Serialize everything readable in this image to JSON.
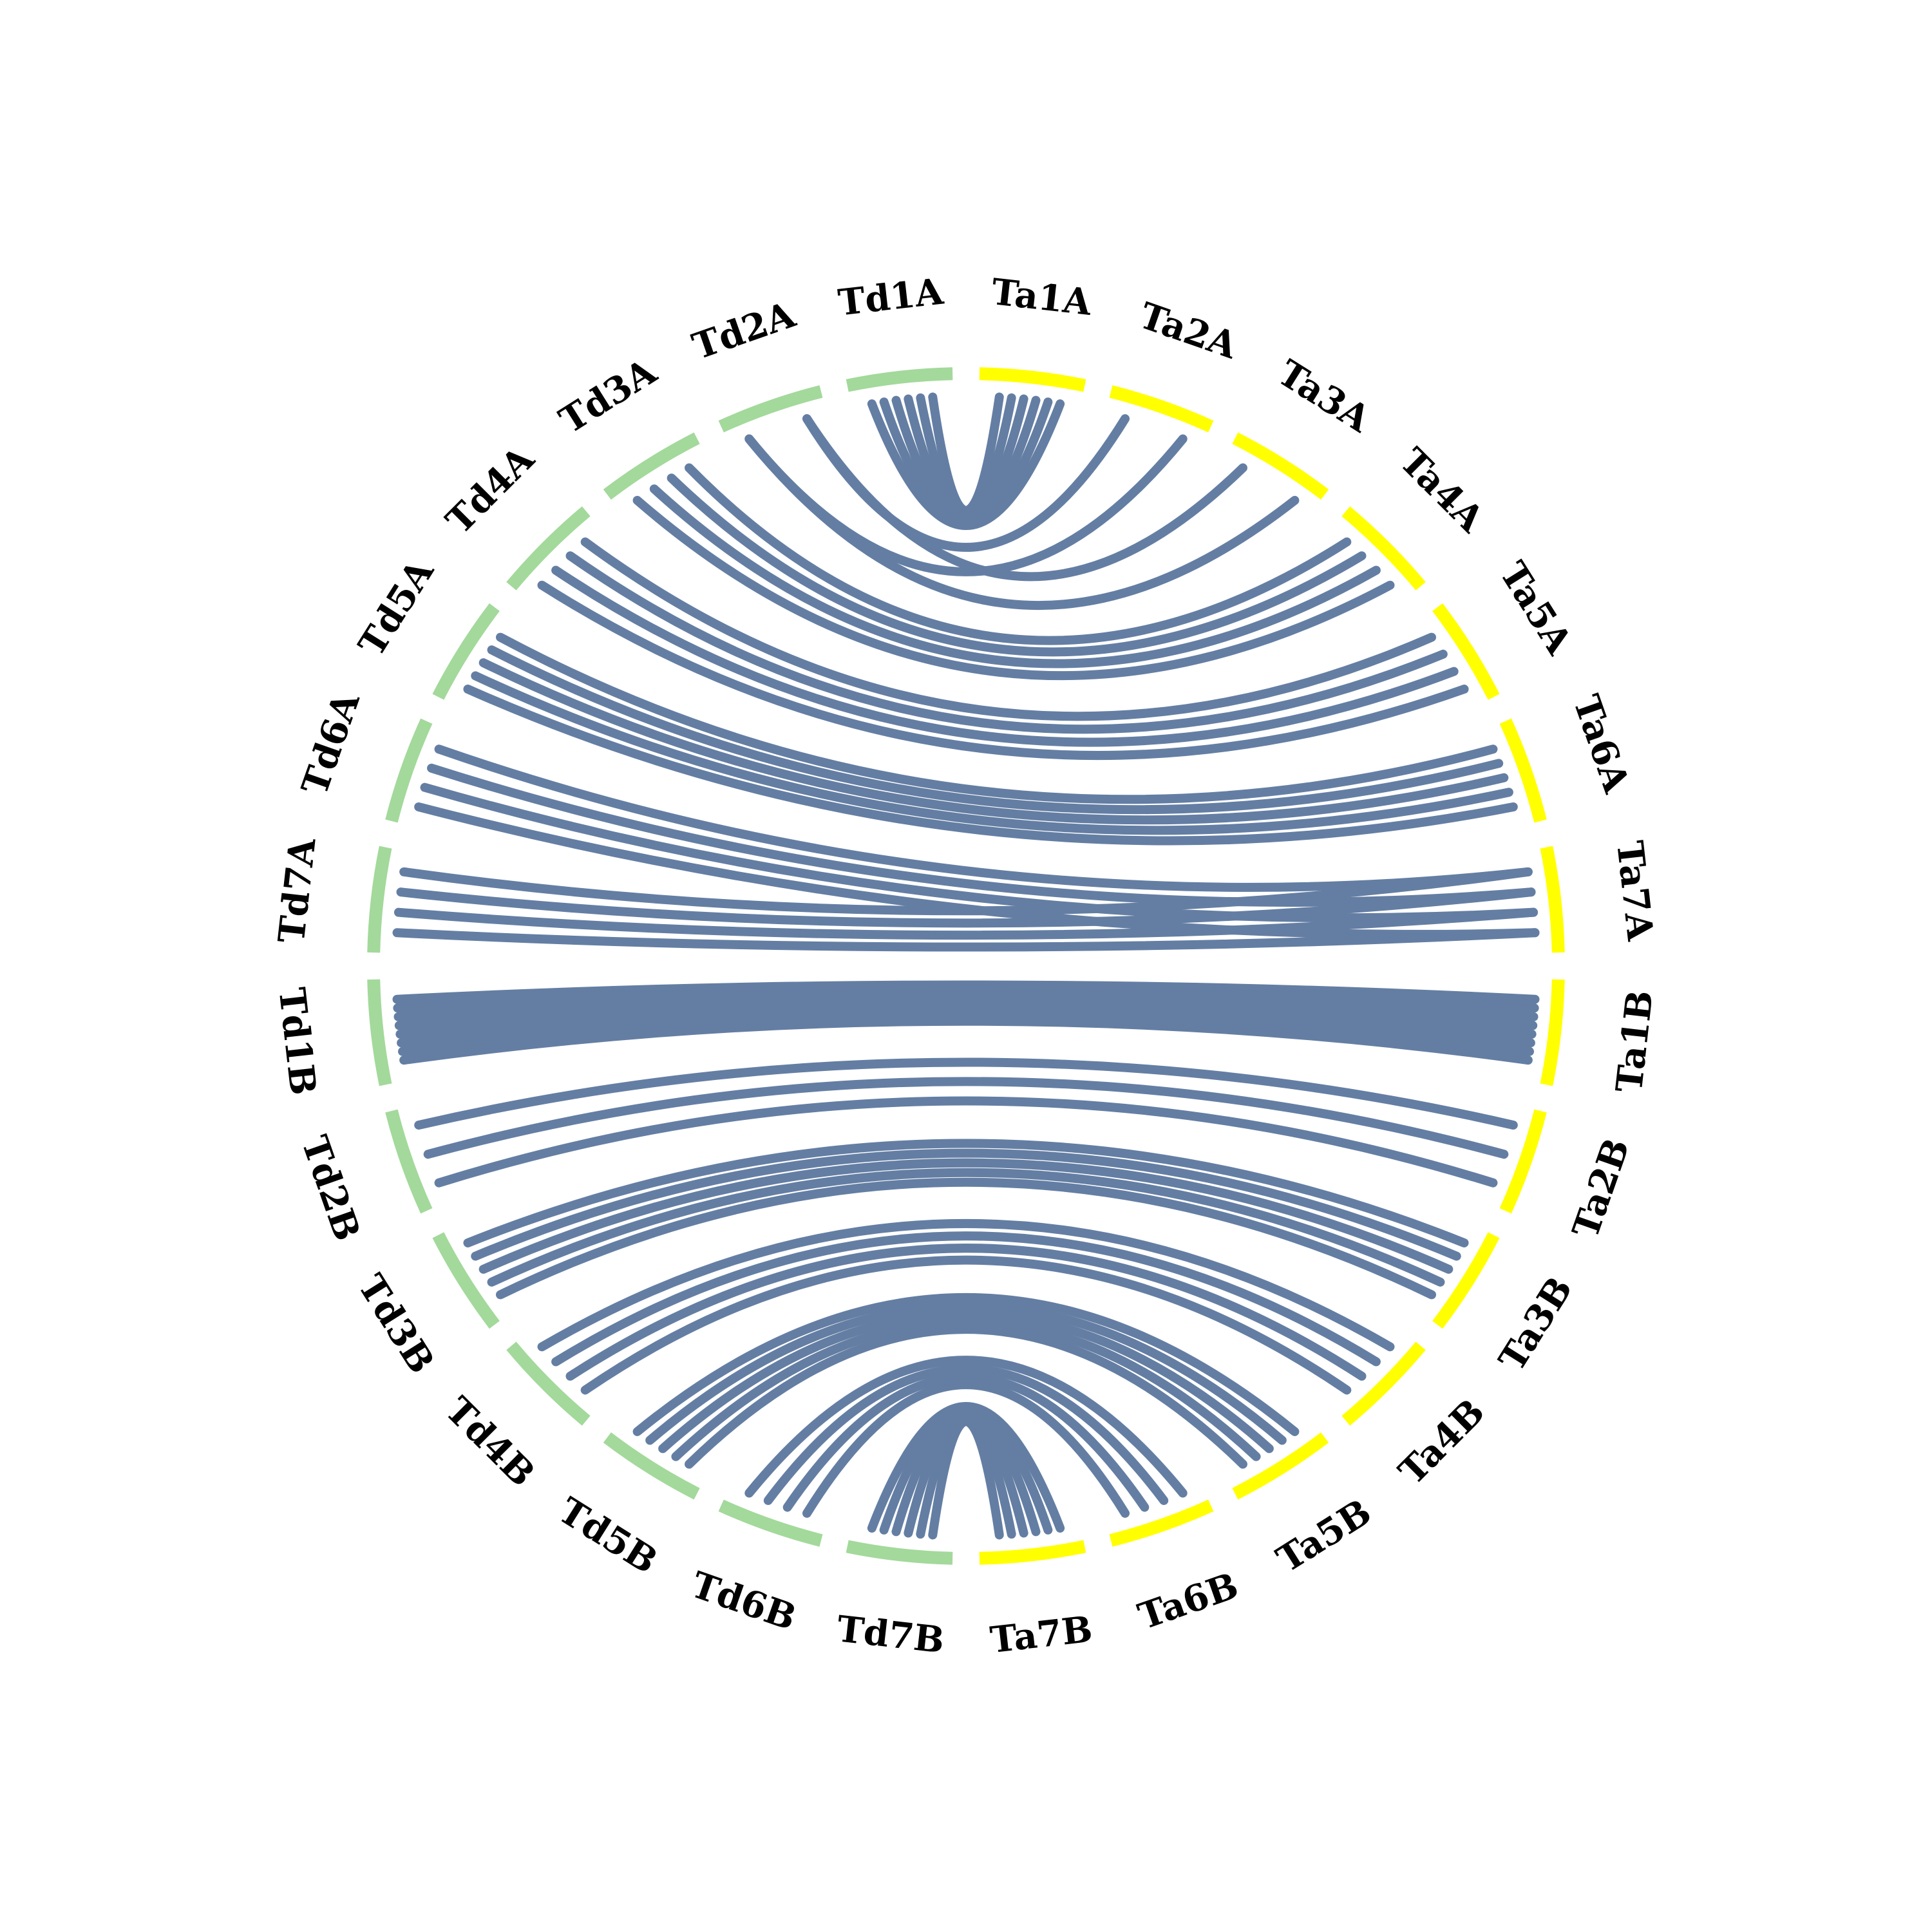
{
  "colors": {
    "td": "#a3d99b",
    "ta": "#ffff00",
    "link": "#647ea3",
    "background": "#ffffff"
  },
  "segments": [
    {
      "id": "Ta1A",
      "label": "Ta1A",
      "group": "ta"
    },
    {
      "id": "Ta2A",
      "label": "Ta2A",
      "group": "ta"
    },
    {
      "id": "Ta3A",
      "label": "Ta3A",
      "group": "ta"
    },
    {
      "id": "Ta4A",
      "label": "Ta4A",
      "group": "ta"
    },
    {
      "id": "Ta5A",
      "label": "Ta5A",
      "group": "ta"
    },
    {
      "id": "Ta6A",
      "label": "Ta6A",
      "group": "ta"
    },
    {
      "id": "Ta7A",
      "label": "Ta7A",
      "group": "ta"
    },
    {
      "id": "Ta1B",
      "label": "Ta1B",
      "group": "ta"
    },
    {
      "id": "Ta2B",
      "label": "Ta2B",
      "group": "ta"
    },
    {
      "id": "Ta3B",
      "label": "Ta3B",
      "group": "ta"
    },
    {
      "id": "Ta4B",
      "label": "Ta4B",
      "group": "ta"
    },
    {
      "id": "Ta5B",
      "label": "Ta5B",
      "group": "ta"
    },
    {
      "id": "Ta6B",
      "label": "Ta6B",
      "group": "ta"
    },
    {
      "id": "Ta7B",
      "label": "Ta7B",
      "group": "ta"
    },
    {
      "id": "Td7B",
      "label": "Td7B",
      "group": "td"
    },
    {
      "id": "Td6B",
      "label": "Td6B",
      "group": "td"
    },
    {
      "id": "Td5B",
      "label": "Td5B",
      "group": "td"
    },
    {
      "id": "Td4B",
      "label": "Td4B",
      "group": "td"
    },
    {
      "id": "Td3B",
      "label": "Td3B",
      "group": "td"
    },
    {
      "id": "Td2B",
      "label": "Td2B",
      "group": "td"
    },
    {
      "id": "Td1B",
      "label": "Td1B",
      "group": "td"
    },
    {
      "id": "Td7A",
      "label": "Td7A",
      "group": "td"
    },
    {
      "id": "Td6A",
      "label": "Td6A",
      "group": "td"
    },
    {
      "id": "Td5A",
      "label": "Td5A",
      "group": "td"
    },
    {
      "id": "Td4A",
      "label": "Td4A",
      "group": "td"
    },
    {
      "id": "Td3A",
      "label": "Td3A",
      "group": "td"
    },
    {
      "id": "Td2A",
      "label": "Td2A",
      "group": "td"
    },
    {
      "id": "Td1A",
      "label": "Td1A",
      "group": "td"
    }
  ],
  "links": [
    {
      "from": "Ta1A",
      "to": "Td1A",
      "count": 6
    },
    {
      "from": "Ta2A",
      "to": "Td2A",
      "count": 2
    },
    {
      "from": "Ta3A",
      "to": "Td2A",
      "count": 2
    },
    {
      "from": "Ta4A",
      "to": "Td3A",
      "count": 4
    },
    {
      "from": "Ta5A",
      "to": "Td4A",
      "count": 4
    },
    {
      "from": "Ta6A",
      "to": "Td5A",
      "count": 5
    },
    {
      "from": "Ta7A",
      "to": "Td6A",
      "count": 4
    },
    {
      "from": "Ta7A",
      "to": "Td7A",
      "count": 4
    },
    {
      "from": "Ta1B",
      "to": "Td1B",
      "count": 8
    },
    {
      "from": "Ta2B",
      "to": "Td2B",
      "count": 3
    },
    {
      "from": "Ta3B",
      "to": "Td3B",
      "count": 5
    },
    {
      "from": "Ta4B",
      "to": "Td4B",
      "count": 4
    },
    {
      "from": "Ta5B",
      "to": "Td5B",
      "count": 5
    },
    {
      "from": "Ta6B",
      "to": "Td6B",
      "count": 4
    },
    {
      "from": "Ta7B",
      "to": "Td7B",
      "count": 6
    }
  ]
}
